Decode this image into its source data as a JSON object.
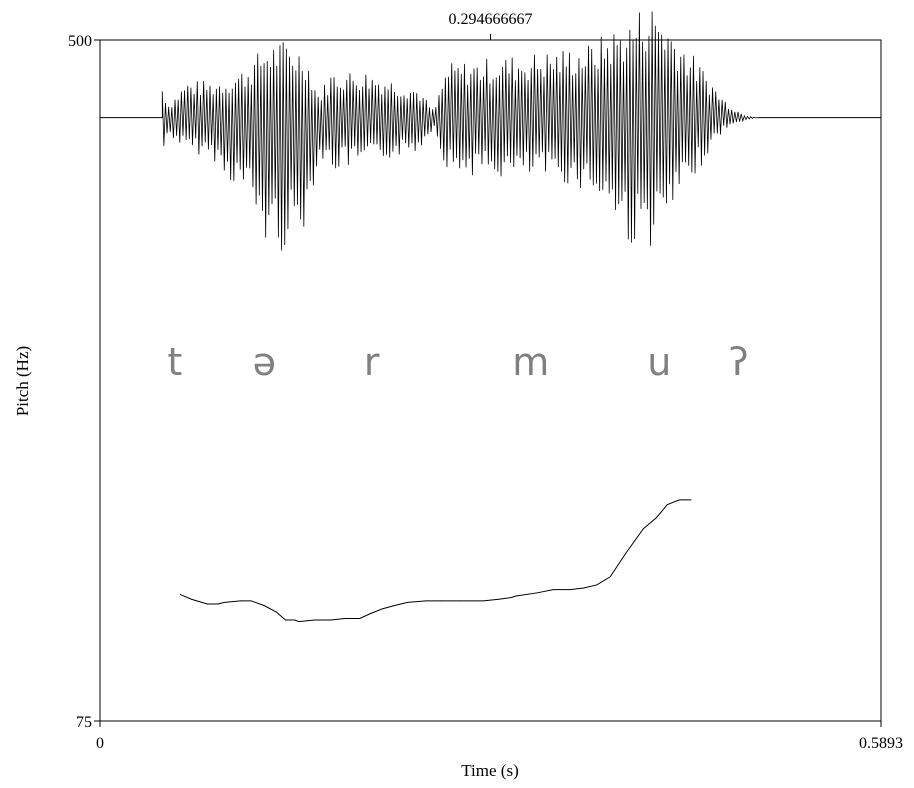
{
  "chart_data": {
    "type": "line",
    "x_axis": {
      "label": "Time (s)",
      "range": [
        0,
        0.5893
      ],
      "tick_labels": [
        "0",
        "0.5893"
      ],
      "cursor_time_label": "0.294666667",
      "cursor_time": 0.294666667
    },
    "y_axis": {
      "label": "Pitch (Hz)",
      "range": [
        75,
        500
      ],
      "scale": "linear",
      "tick_labels": [
        "500",
        "75"
      ]
    },
    "grid": false,
    "legend": "none",
    "segment_labels": [
      {
        "text": "t",
        "time": 0.0565
      },
      {
        "text": "ə",
        "time": 0.124
      },
      {
        "text": "r",
        "time": 0.205
      },
      {
        "text": "m",
        "time": 0.325
      },
      {
        "text": "u",
        "time": 0.422
      },
      {
        "text": "ʔ",
        "time": 0.482
      }
    ],
    "waveform": {
      "start_time": 0.047,
      "end_time": 0.496,
      "baseline_level": 0.886,
      "amplitude_envelope": [
        {
          "t": 0.047,
          "up": 0.05,
          "down": 0.06
        },
        {
          "t": 0.052,
          "up": 0.02,
          "down": 0.025
        },
        {
          "t": 0.065,
          "up": 0.055,
          "down": 0.05
        },
        {
          "t": 0.085,
          "up": 0.055,
          "down": 0.06
        },
        {
          "t": 0.095,
          "up": 0.06,
          "down": 0.09
        },
        {
          "t": 0.11,
          "up": 0.075,
          "down": 0.11
        },
        {
          "t": 0.125,
          "up": 0.11,
          "down": 0.19
        },
        {
          "t": 0.14,
          "up": 0.115,
          "down": 0.2
        },
        {
          "t": 0.155,
          "up": 0.1,
          "down": 0.16
        },
        {
          "t": 0.165,
          "up": 0.035,
          "down": 0.06
        },
        {
          "t": 0.175,
          "up": 0.07,
          "down": 0.08
        },
        {
          "t": 0.2,
          "up": 0.07,
          "down": 0.07
        },
        {
          "t": 0.24,
          "up": 0.045,
          "down": 0.05
        },
        {
          "t": 0.252,
          "up": 0.01,
          "down": 0.015
        },
        {
          "t": 0.262,
          "up": 0.08,
          "down": 0.08
        },
        {
          "t": 0.3,
          "up": 0.09,
          "down": 0.09
        },
        {
          "t": 0.34,
          "up": 0.1,
          "down": 0.09
        },
        {
          "t": 0.37,
          "up": 0.11,
          "down": 0.11
        },
        {
          "t": 0.385,
          "up": 0.13,
          "down": 0.14
        },
        {
          "t": 0.4,
          "up": 0.145,
          "down": 0.19
        },
        {
          "t": 0.41,
          "up": 0.17,
          "down": 0.19
        },
        {
          "t": 0.42,
          "up": 0.17,
          "down": 0.19
        },
        {
          "t": 0.43,
          "up": 0.14,
          "down": 0.15
        },
        {
          "t": 0.445,
          "up": 0.1,
          "down": 0.1
        },
        {
          "t": 0.46,
          "up": 0.06,
          "down": 0.05
        },
        {
          "t": 0.47,
          "up": 0.03,
          "down": 0.02
        },
        {
          "t": 0.485,
          "up": 0.005,
          "down": 0.005
        },
        {
          "t": 0.496,
          "up": 0.0,
          "down": 0.0
        }
      ]
    },
    "pitch_contour": [
      {
        "t": 0.0605,
        "hz": 154
      },
      {
        "t": 0.069,
        "hz": 151
      },
      {
        "t": 0.081,
        "hz": 148
      },
      {
        "t": 0.089,
        "hz": 148
      },
      {
        "t": 0.094,
        "hz": 149
      },
      {
        "t": 0.106,
        "hz": 150
      },
      {
        "t": 0.114,
        "hz": 150
      },
      {
        "t": 0.124,
        "hz": 147
      },
      {
        "t": 0.133,
        "hz": 143
      },
      {
        "t": 0.14,
        "hz": 138
      },
      {
        "t": 0.147,
        "hz": 138
      },
      {
        "t": 0.15,
        "hz": 137
      },
      {
        "t": 0.162,
        "hz": 138
      },
      {
        "t": 0.174,
        "hz": 138
      },
      {
        "t": 0.185,
        "hz": 139
      },
      {
        "t": 0.196,
        "hz": 139
      },
      {
        "t": 0.204,
        "hz": 142
      },
      {
        "t": 0.213,
        "hz": 145
      },
      {
        "t": 0.222,
        "hz": 147
      },
      {
        "t": 0.232,
        "hz": 149
      },
      {
        "t": 0.246,
        "hz": 150
      },
      {
        "t": 0.257,
        "hz": 150
      },
      {
        "t": 0.272,
        "hz": 150
      },
      {
        "t": 0.289,
        "hz": 150
      },
      {
        "t": 0.301,
        "hz": 151
      },
      {
        "t": 0.31,
        "hz": 152
      },
      {
        "t": 0.314,
        "hz": 153
      },
      {
        "t": 0.33,
        "hz": 155
      },
      {
        "t": 0.342,
        "hz": 157
      },
      {
        "t": 0.355,
        "hz": 157
      },
      {
        "t": 0.365,
        "hz": 158
      },
      {
        "t": 0.375,
        "hz": 160
      },
      {
        "t": 0.385,
        "hz": 165
      },
      {
        "t": 0.397,
        "hz": 180
      },
      {
        "t": 0.41,
        "hz": 195
      },
      {
        "t": 0.42,
        "hz": 202
      },
      {
        "t": 0.428,
        "hz": 210
      },
      {
        "t": 0.437,
        "hz": 213
      },
      {
        "t": 0.446,
        "hz": 213
      }
    ]
  }
}
